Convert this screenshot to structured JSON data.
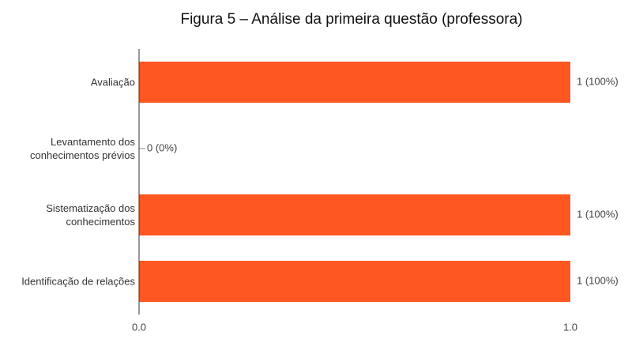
{
  "chart_data": {
    "type": "bar",
    "orientation": "horizontal",
    "title": "Figura 5 – Análise da primeira questão (professora)",
    "categories": [
      "Avaliação",
      "Levantamento dos conhecimentos prévios",
      "Sistematização dos conhecimentos",
      "Identificação de relações"
    ],
    "values": [
      1,
      0,
      1,
      1
    ],
    "value_labels": [
      "1 (100%)",
      "0 (0%)",
      "1 (100%)",
      "1 (100%)"
    ],
    "color": "#fe5722",
    "xlim": [
      0,
      1
    ],
    "xticks": [
      {
        "value": 0,
        "label": "0.0"
      },
      {
        "value": 1,
        "label": "1.0"
      }
    ]
  }
}
